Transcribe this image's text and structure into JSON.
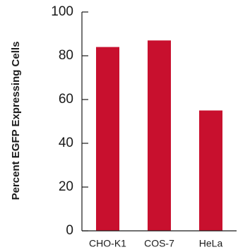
{
  "chart_data": {
    "type": "bar",
    "categories": [
      "CHO-K1",
      "COS-7",
      "HeLa"
    ],
    "values": [
      84,
      87,
      55
    ],
    "ylabel": "Percent EGFP Expressing Cells",
    "xlabel": "",
    "ylim": [
      0,
      100
    ],
    "yticks": [
      0,
      20,
      40,
      60,
      80,
      100
    ],
    "grid": false,
    "bar_color": "#c8102e",
    "axis_color": "#1a1a1a"
  }
}
